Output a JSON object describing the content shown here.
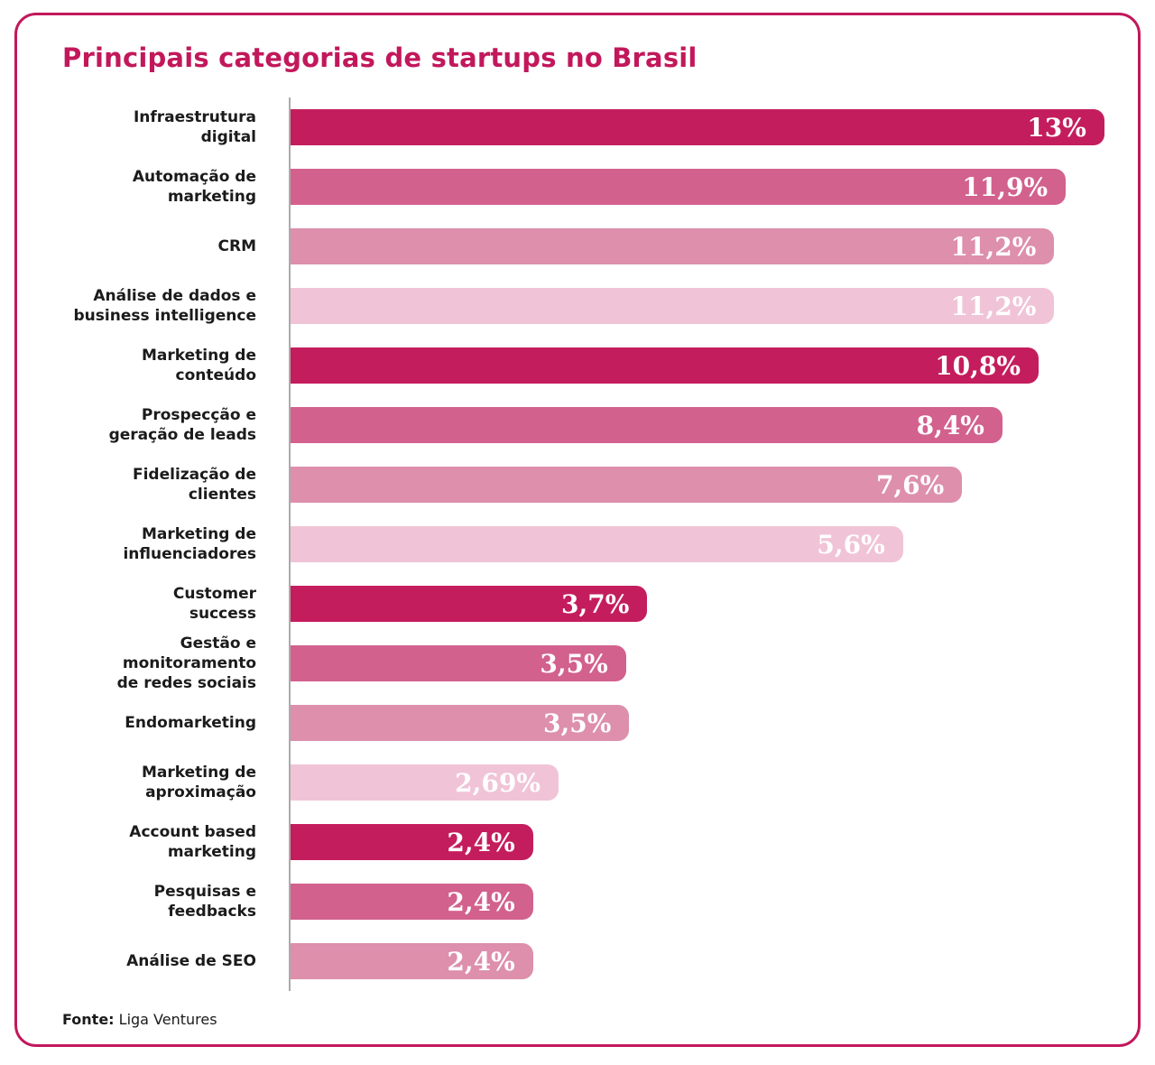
{
  "title": "Principais categorias de startups no Brasil",
  "source": {
    "label": "Fonte:",
    "text": " Liga Ventures"
  },
  "colors": {
    "accent": "#C2185B",
    "axis_line": "#ababab",
    "value_text": "#ffffff",
    "label_text": "#1b1b1b",
    "bar_palette_cycle": [
      "#C41D5D",
      "#D2618E",
      "#DD8FAC",
      "#F0C4D6"
    ]
  },
  "chart_data": {
    "type": "bar",
    "orientation": "horizontal",
    "title": "Principais categorias de startups no Brasil",
    "categories": [
      "Infraestrutura\ndigital",
      "Automação de\nmarketing",
      "CRM",
      "Análise de dados e\nbusiness intelligence",
      "Marketing de\nconteúdo",
      "Prospecção e\ngeração de leads",
      "Fidelização de\nclientes",
      "Marketing de\ninfluenciadores",
      "Customer\nsuccess",
      "Gestão e monitoramento\nde redes sociais",
      "Endomarketing",
      "Marketing de\naproximação",
      "Account based\nmarketing",
      "Pesquisas e\nfeedbacks",
      "Análise de SEO"
    ],
    "values": [
      13,
      11.9,
      11.2,
      11.2,
      10.8,
      8.4,
      7.6,
      5.6,
      3.7,
      3.5,
      3.5,
      2.69,
      2.4,
      2.4,
      2.4
    ],
    "value_labels": [
      "13%",
      "11,9%",
      "11,2%",
      "11,2%",
      "10,8%",
      "8,4%",
      "7,6%",
      "5,6%",
      "3,7%",
      "3,5%",
      "3,5%",
      "2,69%",
      "2,4%",
      "2,4%",
      "2,4%"
    ],
    "bar_colors": [
      "#C41D5D",
      "#D2618E",
      "#DD8FAC",
      "#F0C4D6",
      "#C41D5D",
      "#D2618E",
      "#DD8FAC",
      "#F0C4D6",
      "#C41D5D",
      "#D2618E",
      "#DD8FAC",
      "#F0C4D6",
      "#C41D5D",
      "#D2618E",
      "#DD8FAC"
    ],
    "bar_width_pct": [
      99.0,
      94.3,
      92.9,
      92.9,
      91.0,
      86.6,
      81.7,
      74.5,
      43.4,
      40.8,
      41.2,
      32.6,
      29.5,
      29.5,
      29.5
    ],
    "value_label_position": "inside-right",
    "grid": false,
    "legend": "none",
    "xlim": [
      0,
      13.15
    ]
  }
}
